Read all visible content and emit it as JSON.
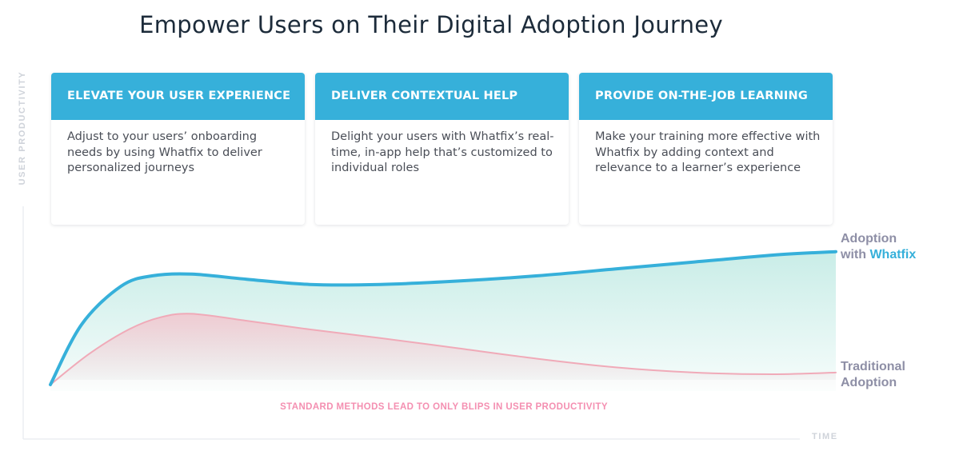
{
  "page": {
    "title": "Empower Users on Their Digital Adoption Journey"
  },
  "cards": [
    {
      "heading": "ELEVATE YOUR USER EXPERIENCE",
      "body": "Adjust to your users’ onboarding needs by using Whatfix to deliver personalized journeys"
    },
    {
      "heading": "DELIVER CONTEXTUAL HELP",
      "body": "Delight your users with Whatfix’s real-time, in-app help that’s customized to individual roles"
    },
    {
      "heading": "PROVIDE ON-THE-JOB LEARNING",
      "body": "Make your training more effective with Whatfix by adding context and relevance to a learner’s experience"
    }
  ],
  "chart_data": {
    "type": "area",
    "title": "",
    "xlabel": "TIME",
    "ylabel": "USER PRODUCTIVITY",
    "xlim": [
      0,
      100
    ],
    "ylim": [
      0,
      100
    ],
    "grid": false,
    "annotation": "STANDARD METHODS LEAD TO ONLY BLIPS IN USER PRODUCTIVITY",
    "series": [
      {
        "name": "Adoption with Whatfix",
        "label_line1": "Adoption",
        "label_line2_prefix": "with ",
        "label_line2_brand": "Whatfix",
        "color": "#36b0da",
        "fill": "#c6ece6",
        "x": [
          0,
          4,
          9,
          13,
          18,
          25,
          33,
          42,
          52,
          62,
          72,
          82,
          92,
          100
        ],
        "y": [
          0,
          35,
          57,
          63,
          64,
          61,
          58,
          58,
          60,
          63,
          67,
          71,
          75,
          77
        ]
      },
      {
        "name": "Traditional Adoption",
        "label_line1": "Traditional",
        "label_line2": "Adoption",
        "color": "#f0aab8",
        "fill": "#f3c4cd",
        "x": [
          0,
          5,
          10,
          14,
          18,
          25,
          33,
          42,
          52,
          62,
          72,
          82,
          92,
          100
        ],
        "y": [
          0,
          18,
          32,
          39,
          41,
          37,
          32,
          27,
          21,
          15,
          10,
          7,
          6,
          7
        ]
      }
    ]
  }
}
